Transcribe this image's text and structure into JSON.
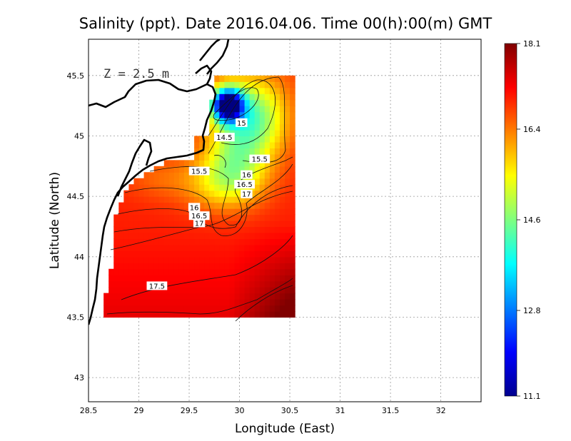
{
  "title": "Salinity (ppt). Date 2016.04.06. Time 00(h):00(m) GMT",
  "depth_label": "Z = 2.5 m",
  "chart_data": {
    "type": "heatmap",
    "title": "Salinity (ppt). Date 2016.04.06. Time 00(h):00(m) GMT",
    "xlabel": "Longitude (East)",
    "ylabel": "Latitude (North)",
    "xlim": [
      28.5,
      32.4
    ],
    "ylim": [
      42.8,
      45.8
    ],
    "x_ticks": [
      "28.5",
      "29",
      "29.5",
      "30",
      "30.5",
      "31",
      "31.5",
      "32"
    ],
    "y_ticks": [
      "43",
      "43.5",
      "44",
      "44.5",
      "45",
      "45.5"
    ],
    "grid": true,
    "data_extent": {
      "lon": [
        28.65,
        30.55
      ],
      "lat": [
        43.5,
        45.5
      ]
    },
    "colorbar": {
      "min": 11.1,
      "max": 18.1,
      "tick_labels": [
        "11.1",
        "12.8",
        "14.6",
        "16.4",
        "18.1"
      ],
      "colormap": "jet"
    },
    "contour_labels": [
      {
        "text": "15",
        "lon": 30.02,
        "lat": 45.11
      },
      {
        "text": "14.5",
        "lon": 29.85,
        "lat": 44.99
      },
      {
        "text": "15.5",
        "lon": 30.2,
        "lat": 44.81
      },
      {
        "text": "15.5",
        "lon": 29.6,
        "lat": 44.71
      },
      {
        "text": "16",
        "lon": 30.07,
        "lat": 44.68
      },
      {
        "text": "16.5",
        "lon": 30.05,
        "lat": 44.6
      },
      {
        "text": "17",
        "lon": 30.07,
        "lat": 44.52
      },
      {
        "text": "16",
        "lon": 29.55,
        "lat": 44.41
      },
      {
        "text": "16.5",
        "lon": 29.6,
        "lat": 44.34
      },
      {
        "text": "17",
        "lon": 29.6,
        "lat": 44.28
      },
      {
        "text": "17.5",
        "lon": 29.18,
        "lat": 43.76
      }
    ]
  }
}
